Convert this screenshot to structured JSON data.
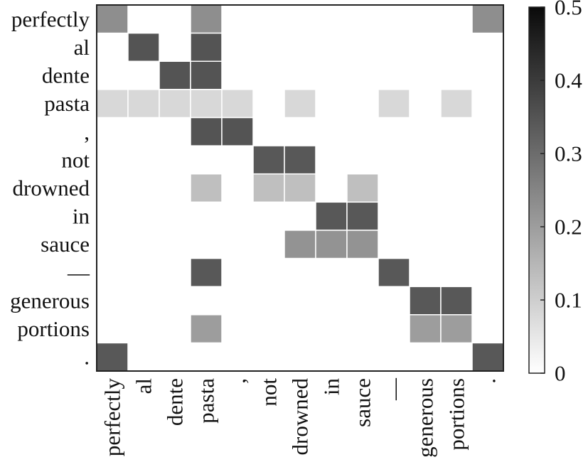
{
  "chart_data": {
    "type": "heatmap",
    "title": "",
    "xlabel": "",
    "ylabel": "",
    "x_labels": [
      "perfectly",
      "al",
      "dente",
      "pasta",
      ",",
      "not",
      "drowned",
      "in",
      "sauce",
      "—",
      "generous",
      "portions",
      "."
    ],
    "y_labels": [
      "perfectly",
      "al",
      "dente",
      "pasta",
      ",",
      "not",
      "drowned",
      "in",
      "sauce",
      "—",
      "generous",
      "portions",
      "."
    ],
    "values": [
      [
        0.23,
        0,
        0,
        0.23,
        0,
        0,
        0,
        0,
        0,
        0,
        0,
        0,
        0.23
      ],
      [
        0,
        0.35,
        0,
        0.35,
        0,
        0,
        0,
        0,
        0,
        0,
        0,
        0,
        0
      ],
      [
        0,
        0,
        0.35,
        0.35,
        0,
        0,
        0,
        0,
        0,
        0,
        0,
        0,
        0
      ],
      [
        0.08,
        0.08,
        0.08,
        0.08,
        0.08,
        0,
        0.08,
        0,
        0,
        0.08,
        0,
        0.08,
        0
      ],
      [
        0,
        0,
        0,
        0.35,
        0.35,
        0,
        0,
        0,
        0,
        0,
        0,
        0,
        0
      ],
      [
        0,
        0,
        0,
        0,
        0,
        0.34,
        0.34,
        0,
        0,
        0,
        0,
        0,
        0
      ],
      [
        0,
        0,
        0,
        0.13,
        0,
        0.13,
        0.13,
        0,
        0.13,
        0,
        0,
        0,
        0
      ],
      [
        0,
        0,
        0,
        0,
        0,
        0,
        0,
        0.34,
        0.34,
        0,
        0,
        0,
        0
      ],
      [
        0,
        0,
        0,
        0,
        0,
        0,
        0.22,
        0.22,
        0.22,
        0,
        0,
        0,
        0
      ],
      [
        0,
        0,
        0,
        0.34,
        0,
        0,
        0,
        0,
        0,
        0.34,
        0,
        0,
        0
      ],
      [
        0,
        0,
        0,
        0,
        0,
        0,
        0,
        0,
        0,
        0,
        0.34,
        0.34,
        0
      ],
      [
        0,
        0,
        0,
        0.2,
        0,
        0,
        0,
        0,
        0,
        0,
        0.2,
        0.2,
        0
      ],
      [
        0.34,
        0,
        0,
        0,
        0,
        0,
        0,
        0,
        0,
        0,
        0,
        0,
        0.34
      ]
    ],
    "colorbar": {
      "min": 0,
      "max": 0.5,
      "ticks": [
        0,
        0.1,
        0.2,
        0.3,
        0.4,
        0.5
      ],
      "tick_labels": [
        "0",
        "0.1",
        "0.2",
        "0.3",
        "0.4",
        "0.5"
      ]
    },
    "colormap": "greys",
    "grid": false,
    "legend": "colorbar-right"
  }
}
